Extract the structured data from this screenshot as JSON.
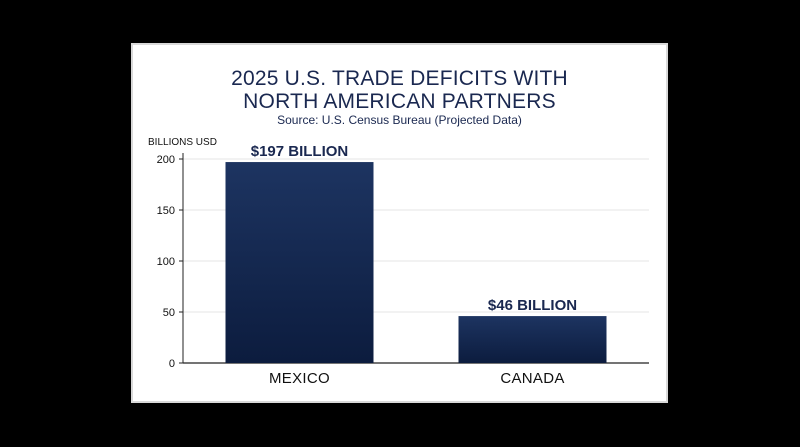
{
  "chart_data": {
    "type": "bar",
    "title_lines": [
      "2025 U.S. TRADE DEFICITS WITH",
      "NORTH AMERICAN PARTNERS"
    ],
    "subtitle": "Source: U.S. Census Bureau (Projected Data)",
    "ylabel": "BILLIONS USD",
    "categories": [
      "MEXICO",
      "CANADA"
    ],
    "values": [
      197,
      46
    ],
    "data_labels": [
      "$197 BILLION",
      "$46 BILLION"
    ],
    "yticks": [
      0,
      50,
      100,
      150,
      200
    ],
    "ylim": [
      0,
      200
    ],
    "grid": true,
    "bar_color_top": "#1d3461",
    "bar_color_bottom": "#0c1c3e"
  }
}
